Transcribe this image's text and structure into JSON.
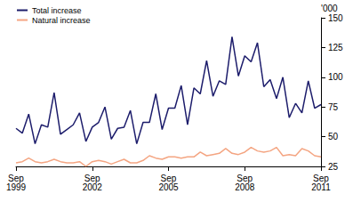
{
  "chart_data": {
    "type": "line",
    "y_label": "'000",
    "categories": [
      "Sep 1999",
      null,
      null,
      null,
      null,
      null,
      null,
      null,
      null,
      null,
      null,
      null,
      "Sep 2002",
      null,
      null,
      null,
      null,
      null,
      null,
      null,
      null,
      null,
      null,
      null,
      "Sep 2005",
      null,
      null,
      null,
      null,
      null,
      null,
      null,
      null,
      null,
      null,
      null,
      "Sep 2008",
      null,
      null,
      null,
      null,
      null,
      null,
      null,
      null,
      null,
      null,
      null,
      "Sep 2011"
    ],
    "series": [
      {
        "name": "Total increase",
        "color": "#1c1c6b",
        "values": [
          57,
          53,
          69,
          44,
          60,
          58,
          87,
          52,
          56,
          60,
          70,
          46,
          58,
          62,
          75,
          48,
          57,
          58,
          72,
          44,
          62,
          62,
          86,
          56,
          74,
          74,
          93,
          60,
          91,
          86,
          114,
          84,
          97,
          94,
          134,
          101,
          118,
          113,
          129,
          92,
          98,
          82,
          100,
          66,
          78,
          70,
          97,
          74,
          77
        ]
      },
      {
        "name": "Natural increase",
        "color": "#f4a582",
        "values": [
          28,
          29,
          32,
          29,
          28,
          29,
          31,
          29,
          28,
          28,
          29,
          25,
          29,
          30,
          29,
          27,
          29,
          31,
          28,
          28,
          30,
          34,
          32,
          31,
          33,
          33,
          32,
          33,
          33,
          37,
          34,
          35,
          36,
          40,
          36,
          35,
          37,
          41,
          38,
          37,
          38,
          41,
          34,
          35,
          34,
          40,
          38,
          34,
          33
        ]
      }
    ],
    "ylim": [
      25,
      150
    ],
    "yticks": [
      25,
      50,
      75,
      100,
      125,
      150
    ],
    "grid": false,
    "legend": "top-left"
  }
}
